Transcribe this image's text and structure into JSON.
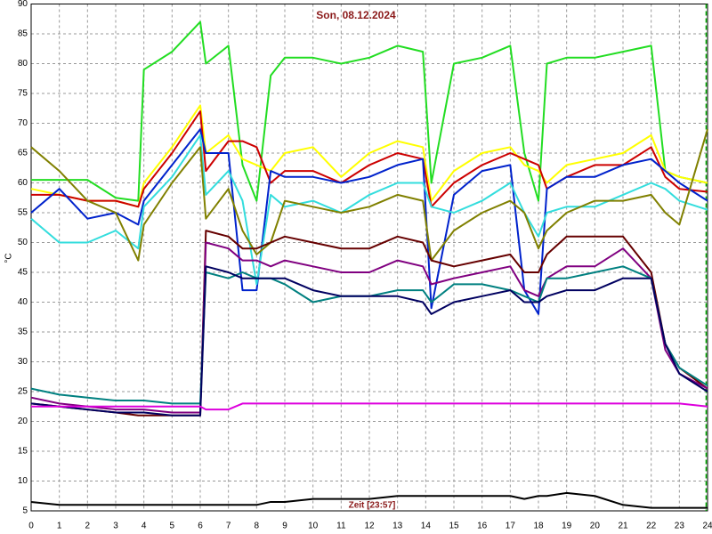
{
  "chart_data": {
    "type": "line",
    "title": "Son, 08.12.2024",
    "y_label": "°C",
    "annotation": "Zeit [23:57]",
    "cursor_x": 23.95,
    "cursor_color": "#00aa00",
    "x": [
      0,
      1,
      2,
      3,
      3.8,
      4,
      5,
      6,
      6.2,
      7,
      7.5,
      8,
      8.5,
      9,
      10,
      11,
      12,
      13,
      13.9,
      14.2,
      15,
      16,
      17,
      17.5,
      18,
      18.3,
      19,
      20,
      21,
      22,
      22.5,
      23,
      24
    ],
    "xlim": [
      0,
      24
    ],
    "xticks": [
      0,
      1,
      2,
      3,
      4,
      5,
      6,
      7,
      8,
      9,
      10,
      11,
      12,
      13,
      14,
      15,
      16,
      17,
      18,
      19,
      20,
      21,
      22,
      23,
      24
    ],
    "ylim": [
      5,
      90
    ],
    "yticks": [
      5,
      10,
      15,
      20,
      25,
      30,
      35,
      40,
      45,
      50,
      55,
      60,
      65,
      70,
      75,
      80,
      85,
      90
    ],
    "grid": true,
    "series": [
      {
        "color": "#22dd22",
        "values": [
          60.5,
          60.5,
          60.5,
          57.5,
          57,
          79,
          82,
          87,
          80,
          83,
          63,
          57,
          78,
          81,
          81,
          80,
          81,
          83,
          82,
          60,
          80,
          81,
          83,
          65,
          57,
          80,
          81,
          81,
          82,
          83,
          62,
          61,
          60
        ]
      },
      {
        "color": "#ffff00",
        "values": [
          59,
          58,
          57,
          57,
          56,
          60,
          66,
          73,
          65,
          68,
          64,
          63,
          62,
          65,
          66,
          61,
          65,
          67,
          66,
          57,
          62,
          65,
          66,
          63,
          62,
          60,
          63,
          64,
          65,
          68,
          62,
          61,
          60
        ]
      },
      {
        "color": "#cc0000",
        "values": [
          58,
          58,
          57,
          57,
          56,
          59,
          65,
          72,
          62,
          67,
          67,
          66,
          60,
          62,
          62,
          60,
          63,
          65,
          64,
          56,
          60,
          63,
          65,
          64,
          63,
          59,
          61,
          63,
          63,
          66,
          61,
          59,
          58.5
        ]
      },
      {
        "color": "#0022cc",
        "values": [
          55,
          59,
          54,
          55,
          53,
          57,
          63,
          69,
          65,
          65,
          42,
          42,
          62,
          61,
          61,
          60,
          61,
          63,
          64,
          39,
          58,
          62,
          63,
          42,
          38,
          59,
          61,
          61,
          63,
          64,
          62,
          60,
          57
        ]
      },
      {
        "color": "#33dddd",
        "values": [
          54,
          50,
          50,
          52,
          49,
          56,
          61,
          68,
          58,
          62,
          57,
          43,
          58,
          56,
          57,
          55,
          58,
          60,
          60,
          56,
          55,
          57,
          60,
          55,
          51,
          55,
          56,
          56,
          58,
          60,
          59,
          57,
          55.5
        ]
      },
      {
        "color": "#808000",
        "values": [
          66,
          62,
          57,
          55,
          47,
          53,
          60,
          66,
          54,
          59,
          52,
          48,
          50,
          57,
          56,
          55,
          56,
          58,
          57,
          47,
          52,
          55,
          57,
          55,
          49,
          52,
          55,
          57,
          57,
          58,
          55,
          53,
          69
        ]
      },
      {
        "color": "#660000",
        "values": [
          23,
          22.5,
          22,
          21.5,
          21,
          21,
          21,
          21,
          52,
          51,
          49,
          49,
          50,
          51,
          50,
          49,
          49,
          51,
          50,
          47,
          46,
          47,
          48,
          45,
          45,
          48,
          51,
          51,
          51,
          45,
          33,
          29,
          25.5
        ]
      },
      {
        "color": "#800080",
        "values": [
          24,
          23,
          22.5,
          22,
          22,
          22,
          21.5,
          21.5,
          50,
          49,
          47,
          47,
          46,
          47,
          46,
          45,
          45,
          47,
          46,
          43,
          44,
          45,
          46,
          42,
          41,
          44,
          46,
          46,
          49,
          44,
          32,
          28,
          25.5
        ]
      },
      {
        "color": "#008080",
        "values": [
          25.5,
          24.5,
          24,
          23.5,
          23.5,
          23.5,
          23,
          23,
          45,
          44,
          45,
          44,
          44,
          43,
          40,
          41,
          41,
          42,
          42,
          40,
          43,
          43,
          42,
          41,
          40,
          44,
          44,
          45,
          46,
          44,
          33,
          29,
          26
        ]
      },
      {
        "color": "#000060",
        "values": [
          23,
          22.5,
          22,
          21.5,
          21.5,
          21.5,
          21,
          21,
          46,
          45,
          44,
          44,
          44,
          44,
          42,
          41,
          41,
          41,
          40,
          38,
          40,
          41,
          42,
          40,
          40,
          41,
          42,
          42,
          44,
          44,
          33,
          28,
          25
        ]
      },
      {
        "color": "#dd00dd",
        "values": [
          22.5,
          22.5,
          22.5,
          22.5,
          22.5,
          22.5,
          22.5,
          22.5,
          22,
          22,
          23,
          23,
          23,
          23,
          23,
          23,
          23,
          23,
          23,
          23,
          23,
          23,
          23,
          23,
          23,
          23,
          23,
          23,
          23,
          23,
          23,
          23,
          22.5
        ]
      },
      {
        "color": "#000000",
        "values": [
          6.5,
          6,
          6,
          6,
          6,
          6,
          6,
          6,
          6,
          6,
          6,
          6,
          6.5,
          6.5,
          7,
          7,
          7,
          7.5,
          7.5,
          7.5,
          7.5,
          7.5,
          7.5,
          7,
          7.5,
          7.5,
          8,
          7.5,
          6,
          5.5,
          5.5,
          5.5,
          5.5
        ]
      }
    ]
  }
}
